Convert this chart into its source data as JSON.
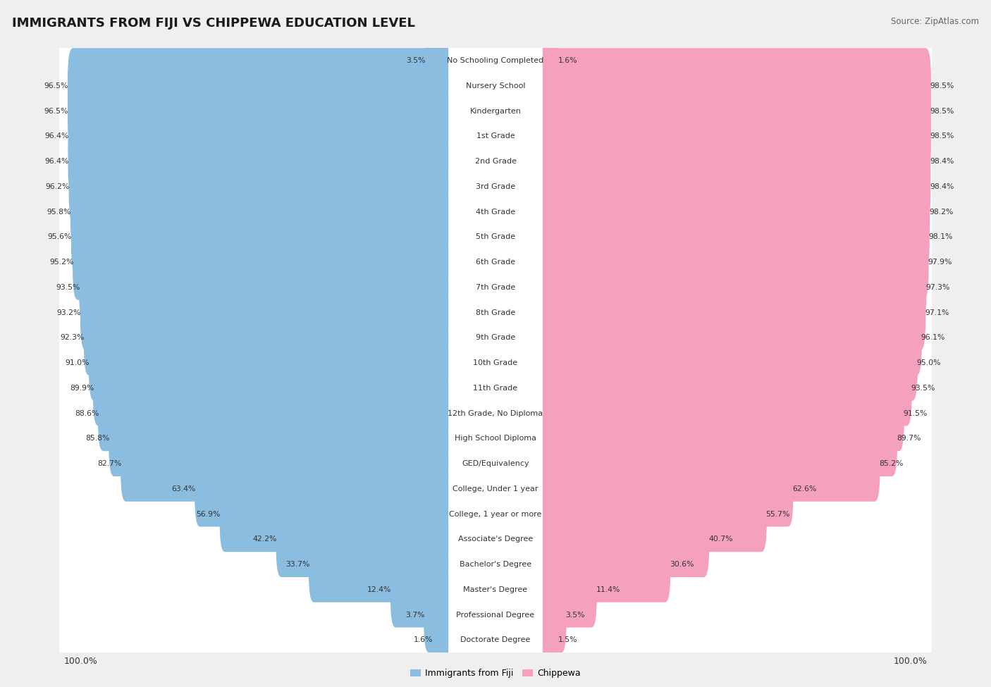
{
  "title": "IMMIGRANTS FROM FIJI VS CHIPPEWA EDUCATION LEVEL",
  "source": "Source: ZipAtlas.com",
  "categories": [
    "No Schooling Completed",
    "Nursery School",
    "Kindergarten",
    "1st Grade",
    "2nd Grade",
    "3rd Grade",
    "4th Grade",
    "5th Grade",
    "6th Grade",
    "7th Grade",
    "8th Grade",
    "9th Grade",
    "10th Grade",
    "11th Grade",
    "12th Grade, No Diploma",
    "High School Diploma",
    "GED/Equivalency",
    "College, Under 1 year",
    "College, 1 year or more",
    "Associate's Degree",
    "Bachelor's Degree",
    "Master's Degree",
    "Professional Degree",
    "Doctorate Degree"
  ],
  "fiji_values": [
    3.5,
    96.5,
    96.5,
    96.4,
    96.4,
    96.2,
    95.8,
    95.6,
    95.2,
    93.5,
    93.2,
    92.3,
    91.0,
    89.9,
    88.6,
    85.8,
    82.7,
    63.4,
    56.9,
    42.2,
    33.7,
    12.4,
    3.7,
    1.6
  ],
  "chippewa_values": [
    1.6,
    98.5,
    98.5,
    98.5,
    98.4,
    98.4,
    98.2,
    98.1,
    97.9,
    97.3,
    97.1,
    96.1,
    95.0,
    93.5,
    91.5,
    89.7,
    85.2,
    62.6,
    55.7,
    40.7,
    30.6,
    11.4,
    3.5,
    1.5
  ],
  "fiji_color": "#8bbde0",
  "chippewa_color": "#f5a0bf",
  "background_color": "#efefef",
  "row_alt_color": "#e8e8e8",
  "bar_bg_color": "#ffffff",
  "text_color": "#333333",
  "title_color": "#1a1a1a",
  "source_color": "#666666"
}
